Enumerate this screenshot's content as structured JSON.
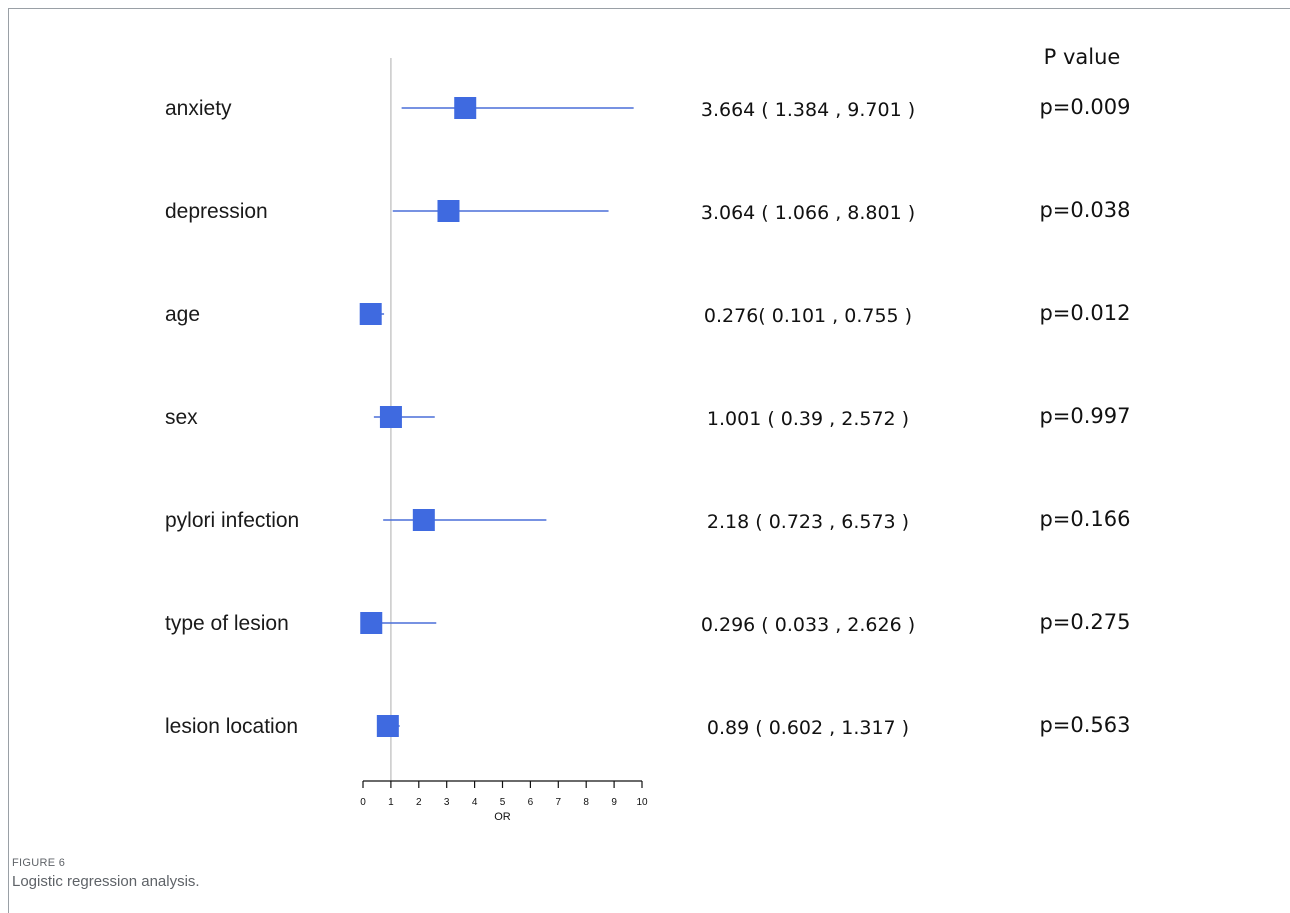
{
  "figure": {
    "number": "FIGURE 6",
    "caption": "Logistic regression analysis."
  },
  "colors": {
    "marker": "#3f6ae0",
    "ci_line": "#4a6fd8",
    "reference_line": "#c8c8c8",
    "axis": "#111111"
  },
  "p_header": "P value",
  "chart_data": {
    "type": "forest",
    "xlabel": "OR",
    "xlim": [
      0,
      10
    ],
    "xticks": [
      0,
      1,
      2,
      3,
      4,
      5,
      6,
      7,
      8,
      9,
      10
    ],
    "reference_value": 1,
    "rows": [
      {
        "label": "anxiety",
        "or": 3.664,
        "lower": 1.384,
        "upper": 9.701,
        "ci_text": "3.664 ( 1.384 , 9.701 )",
        "p_text": "p=0.009"
      },
      {
        "label": "depression",
        "or": 3.064,
        "lower": 1.066,
        "upper": 8.801,
        "ci_text": "3.064 ( 1.066 , 8.801 )",
        "p_text": "p=0.038"
      },
      {
        "label": "age",
        "or": 0.276,
        "lower": 0.101,
        "upper": 0.755,
        "ci_text": "0.276( 0.101 , 0.755 )",
        "p_text": "p=0.012"
      },
      {
        "label": "sex",
        "or": 1.001,
        "lower": 0.39,
        "upper": 2.572,
        "ci_text": "1.001 ( 0.39 , 2.572 )",
        "p_text": "p=0.997"
      },
      {
        "label": "pylori infection",
        "or": 2.18,
        "lower": 0.723,
        "upper": 6.573,
        "ci_text": "2.18 ( 0.723 , 6.573 )",
        "p_text": "p=0.166"
      },
      {
        "label": "type of lesion",
        "or": 0.296,
        "lower": 0.033,
        "upper": 2.626,
        "ci_text": "0.296 ( 0.033 , 2.626 )",
        "p_text": "p=0.275"
      },
      {
        "label": "lesion location",
        "or": 0.89,
        "lower": 0.602,
        "upper": 1.317,
        "ci_text": "0.89 ( 0.602 , 1.317 )",
        "p_text": "p=0.563"
      }
    ]
  }
}
